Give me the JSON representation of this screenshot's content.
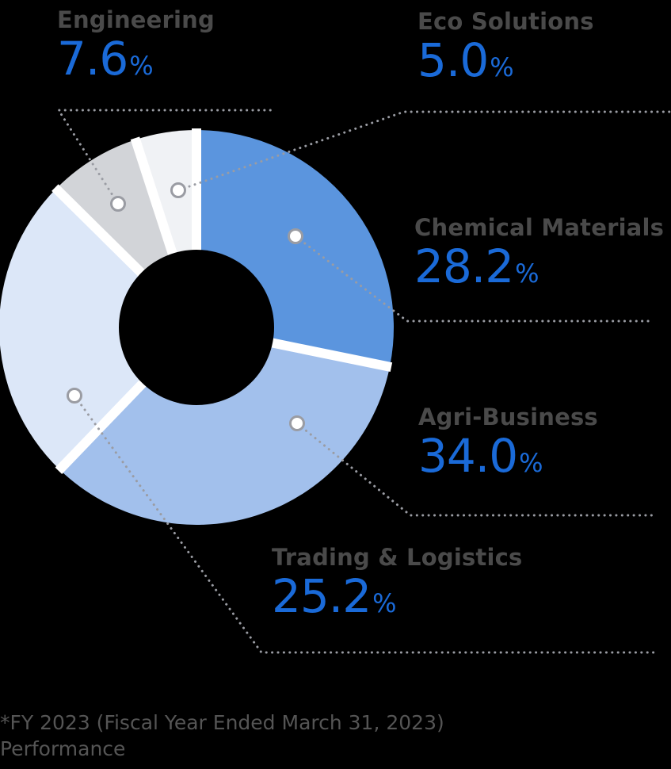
{
  "chart_data": {
    "type": "pie",
    "subtype": "donut",
    "title": "",
    "unit": "%",
    "start_angle_deg": 0,
    "direction": "clockwise",
    "categories": [
      "Chemical Materials",
      "Agri-Business",
      "Trading & Logistics",
      "Engineering",
      "Eco Solutions"
    ],
    "values": [
      28.2,
      34.0,
      25.2,
      7.6,
      5.0
    ],
    "colors": [
      "#5b95de",
      "#a2c0ec",
      "#dce7f8",
      "#d2d4d8",
      "#f0f2f5"
    ],
    "legend": "leader-line labels around chart",
    "note": "*FY 2023 (Fiscal Year Ended March 31, 2023) Performance"
  },
  "labels": [
    {
      "name": "Engineering",
      "value": "7.6",
      "pct": "%"
    },
    {
      "name": "Eco Solutions",
      "value": "5.0",
      "pct": "%"
    },
    {
      "name": "Chemical Materials",
      "value": "28.2",
      "pct": "%"
    },
    {
      "name": "Agri-Business",
      "value": "34.0",
      "pct": "%"
    },
    {
      "name": "Trading & Logistics",
      "value": "25.2",
      "pct": "%"
    }
  ],
  "footnote": {
    "line1": "*FY 2023 (Fiscal Year Ended March 31, 2023)",
    "line2": "Performance"
  },
  "colors": {
    "background": "#000000",
    "label_text": "#4a4a4a",
    "value_text": "#1a6ad8",
    "leader_line": "#9a9ca3",
    "separator": "#ffffff"
  }
}
